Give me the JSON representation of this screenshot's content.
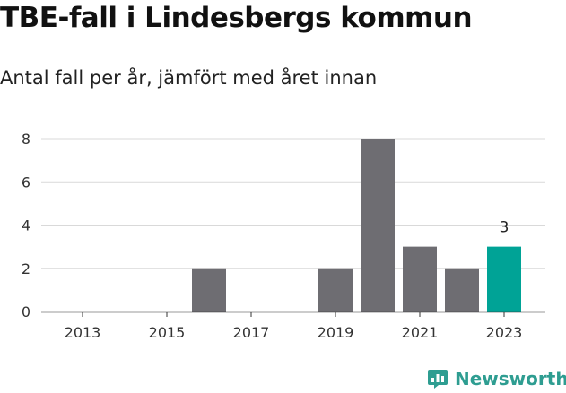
{
  "header": {
    "title": "TBE-fall i Lindesbergs kommun",
    "subtitle": "Antal fall per år, jämfört med året innan"
  },
  "brand": {
    "name": "Newsworthy",
    "icon": "newsworthy-chart-icon"
  },
  "colors": {
    "bar": "#6e6d72",
    "highlight": "#00a396",
    "grid": "#d9d9d9",
    "axis": "#333333",
    "brand": "#2e9d91"
  },
  "chart_data": {
    "type": "bar",
    "categories": [
      "2013",
      "2014",
      "2015",
      "2016",
      "2017",
      "2018",
      "2019",
      "2020",
      "2021",
      "2022",
      "2023"
    ],
    "values": [
      0,
      0,
      0,
      2,
      0,
      0,
      2,
      8,
      3,
      2,
      3
    ],
    "x_tick_labels": [
      "2013",
      "2015",
      "2017",
      "2019",
      "2021",
      "2023"
    ],
    "y_ticks": [
      0,
      2,
      4,
      6,
      8
    ],
    "ylim": [
      0,
      8
    ],
    "highlight_category": "2023",
    "data_labels": [
      {
        "category": "2023",
        "text": "3"
      }
    ],
    "grid": true,
    "legend": "none",
    "xlabel": "",
    "ylabel": ""
  }
}
